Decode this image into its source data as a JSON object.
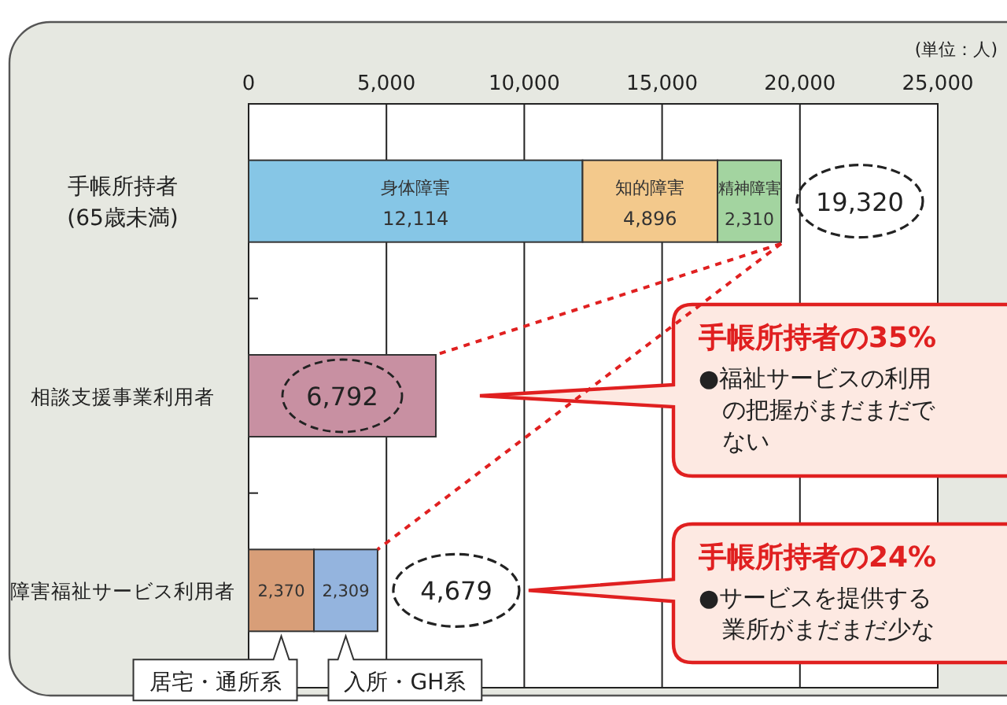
{
  "chart_data": {
    "type": "bar",
    "orientation": "horizontal",
    "stacked": true,
    "grid": "x",
    "categories": [
      "手帳所持者(65歳未満)",
      "相談支援事業利用者",
      "障害福祉サービス利用者"
    ],
    "xlim": [
      0,
      25000
    ],
    "xticks": [
      {
        "value": 0,
        "label": "0"
      },
      {
        "value": 5000,
        "label": "5,000"
      },
      {
        "value": 10000,
        "label": "10,000"
      },
      {
        "value": 15000,
        "label": "15,000"
      },
      {
        "value": 20000,
        "label": "20,000"
      },
      {
        "value": 25000,
        "label": "25,000"
      }
    ],
    "series": [
      {
        "name": "身体障害",
        "color": "#86c6e6",
        "values": [
          12114,
          null,
          null
        ],
        "value_labels": [
          "12,114",
          null,
          null
        ]
      },
      {
        "name": "知的障害",
        "color": "#f3c98c",
        "values": [
          4896,
          null,
          null
        ],
        "value_labels": [
          "4,896",
          null,
          null
        ]
      },
      {
        "name": "精神障害",
        "color": "#a3d4a0",
        "values": [
          2310,
          null,
          null
        ],
        "value_labels": [
          "2,310",
          null,
          null
        ]
      },
      {
        "color": "#c890a2",
        "values": [
          null,
          6792,
          null
        ],
        "value_labels": [
          null,
          "6,792",
          null
        ]
      },
      {
        "name": "居宅・通所系",
        "color": "#d89e78",
        "values": [
          null,
          null,
          2370
        ],
        "value_labels": [
          null,
          null,
          "2,370"
        ]
      },
      {
        "name": "入所・GH系",
        "color": "#94b4de",
        "values": [
          null,
          null,
          2309
        ],
        "value_labels": [
          null,
          null,
          "2,309"
        ]
      }
    ],
    "totals": [
      "19,320",
      null,
      "4,679"
    ],
    "annotations": [
      "(単位：人)",
      "手帳所持者の35%",
      "●福祉サービスの利用の把握がまだまだでない",
      "手帳所持者の24%",
      "●サービスを提供する業所がまだまだ少な"
    ]
  }
}
